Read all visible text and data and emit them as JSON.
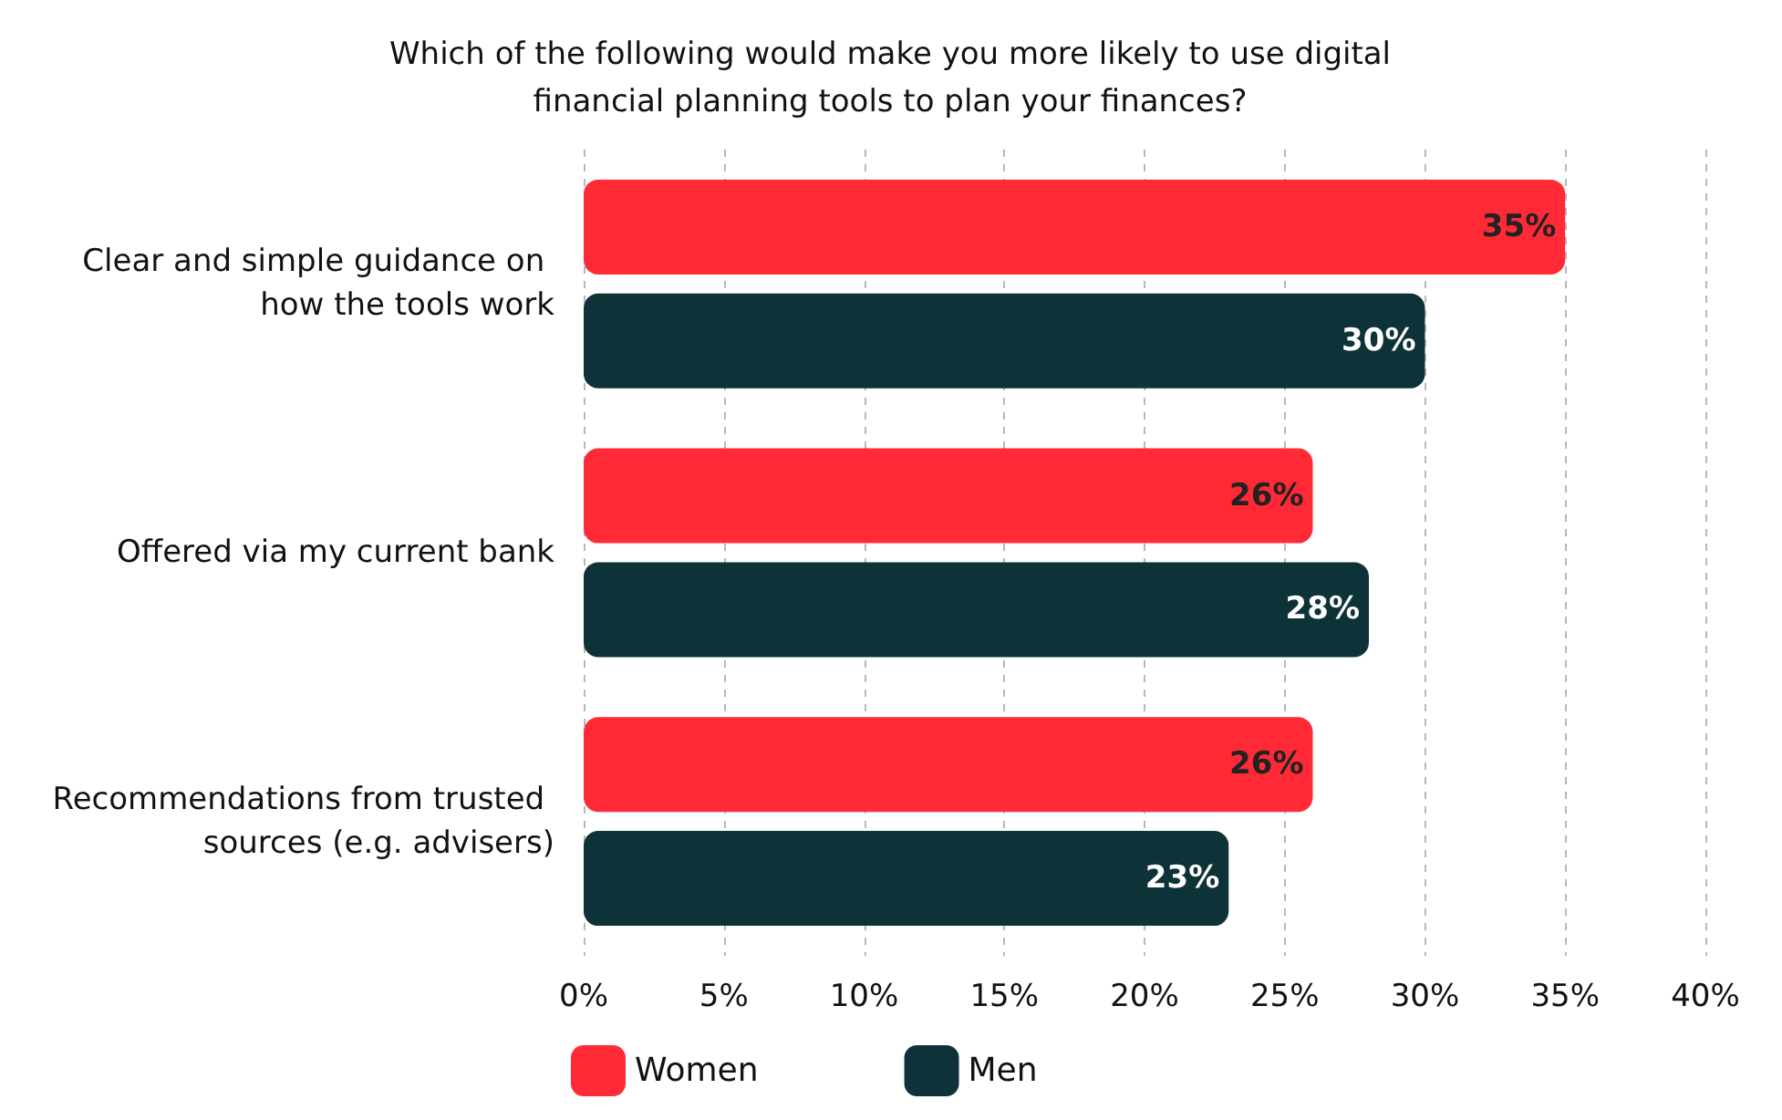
{
  "chart_data": {
    "type": "bar",
    "orientation": "horizontal",
    "title": "Which of the following would make you more likely to use digital\nfinancial planning tools to plan your finances?",
    "categories": [
      "Clear and simple guidance on how the tools work",
      "Offered via my current bank",
      "Recommendations from trusted sources (e.g. advisers)"
    ],
    "series": [
      {
        "name": "Women",
        "color": "#ff2a36",
        "values": [
          35,
          26,
          26
        ],
        "value_labels": [
          "35%",
          "26%",
          "26%"
        ]
      },
      {
        "name": "Men",
        "color": "#0d3338",
        "values": [
          30,
          28,
          23
        ],
        "value_labels": [
          "30%",
          "28%",
          "23%"
        ]
      }
    ],
    "xlim": [
      0,
      40
    ],
    "xticks": [
      {
        "value": 0,
        "label": "0%"
      },
      {
        "value": 5,
        "label": "5%"
      },
      {
        "value": 10,
        "label": "10%"
      },
      {
        "value": 15,
        "label": "15%"
      },
      {
        "value": 20,
        "label": "20%"
      },
      {
        "value": 25,
        "label": "25%"
      },
      {
        "value": 30,
        "label": "30%"
      },
      {
        "value": 35,
        "label": "35%"
      },
      {
        "value": 40,
        "label": "40%"
      }
    ],
    "grid": "x",
    "legend": "bottom"
  }
}
